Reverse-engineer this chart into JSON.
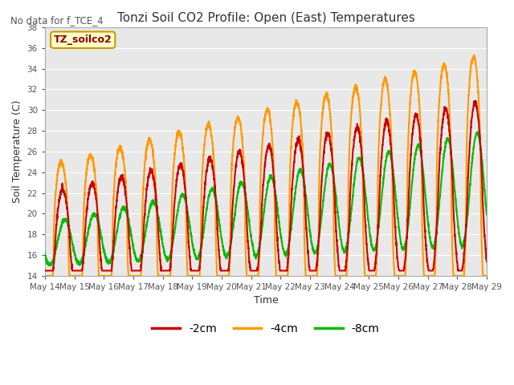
{
  "title": "Tonzi Soil CO2 Profile: Open (East) Temperatures",
  "xlabel": "Time",
  "ylabel": "Soil Temperature (C)",
  "subtitle": "No data for f_TCE_4",
  "watermark": "TZ_soilco2",
  "ylim": [
    14,
    38
  ],
  "yticks": [
    14,
    16,
    18,
    20,
    22,
    24,
    26,
    28,
    30,
    32,
    34,
    36,
    38
  ],
  "background_color": "#e8e8e8",
  "plot_bg_color": "#d8d8d8",
  "line_colors": {
    "-2cm": "#cc0000",
    "-4cm": "#ff9900",
    "-8cm": "#00bb00"
  },
  "legend_labels": [
    "-2cm",
    "-4cm",
    "-8cm"
  ],
  "x_tick_labels": [
    "May 14",
    "May 15",
    "May 16",
    "May 17",
    "May 18",
    "May 19",
    "May 20",
    "May 21",
    "May 22",
    "May 23",
    "May 24",
    "May 25",
    "May 26",
    "May 27",
    "May 28",
    "May 29"
  ],
  "line_width": 1.5,
  "figsize": [
    6.4,
    4.8
  ],
  "dpi": 100
}
